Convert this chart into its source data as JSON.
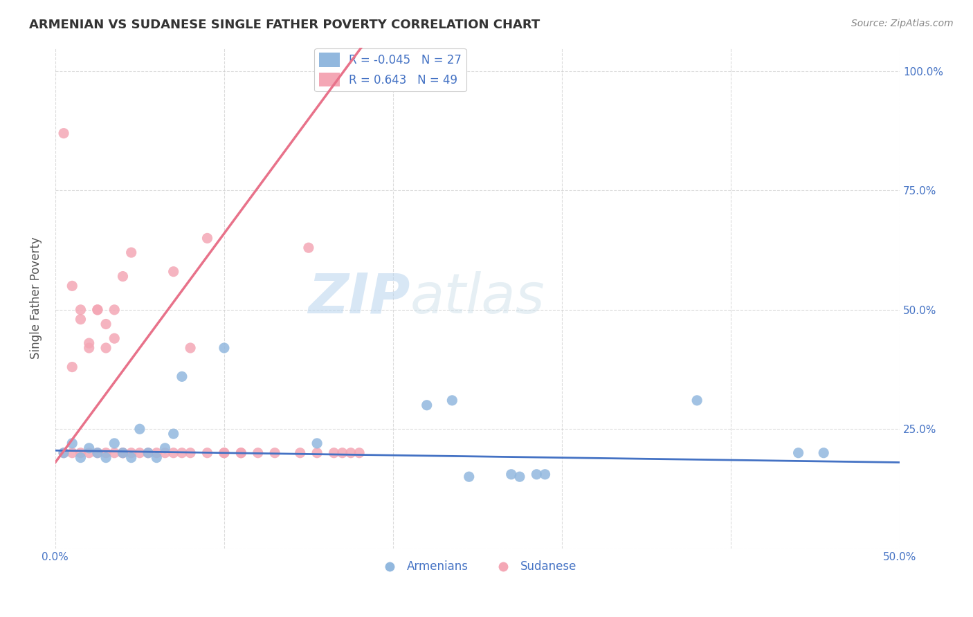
{
  "title": "ARMENIAN VS SUDANESE SINGLE FATHER POVERTY CORRELATION CHART",
  "source": "Source: ZipAtlas.com",
  "ylabel_label": "Single Father Poverty",
  "xlim": [
    0.0,
    0.5
  ],
  "ylim": [
    0.0,
    1.05
  ],
  "xticks": [
    0.0,
    0.1,
    0.2,
    0.3,
    0.4,
    0.5
  ],
  "xticklabels": [
    "0.0%",
    "",
    "",
    "",
    "",
    "50.0%"
  ],
  "yticks": [
    0.0,
    0.25,
    0.5,
    0.75,
    1.0
  ],
  "yticklabels_right": [
    "",
    "25.0%",
    "50.0%",
    "75.0%",
    "100.0%"
  ],
  "armenian_color": "#92b8de",
  "sudanese_color": "#f4a7b5",
  "armenian_line_color": "#4472c4",
  "sudanese_line_color": "#e8728a",
  "legend_r_armenian": "-0.045",
  "legend_n_armenian": "27",
  "legend_r_sudanese": " 0.643",
  "legend_n_sudanese": "49",
  "watermark_zip": "ZIP",
  "watermark_atlas": "atlas",
  "armenian_scatter_x": [
    0.005,
    0.01,
    0.015,
    0.02,
    0.025,
    0.03,
    0.035,
    0.04,
    0.045,
    0.05,
    0.055,
    0.06,
    0.065,
    0.07,
    0.075,
    0.1,
    0.155,
    0.22,
    0.235,
    0.245,
    0.275,
    0.38,
    0.44,
    0.455,
    0.27,
    0.285,
    0.29
  ],
  "armenian_scatter_y": [
    0.2,
    0.22,
    0.19,
    0.21,
    0.2,
    0.19,
    0.22,
    0.2,
    0.19,
    0.25,
    0.2,
    0.19,
    0.21,
    0.24,
    0.36,
    0.42,
    0.22,
    0.3,
    0.31,
    0.15,
    0.15,
    0.31,
    0.2,
    0.2,
    0.155,
    0.155,
    0.155
  ],
  "sudanese_scatter_x": [
    0.005,
    0.01,
    0.015,
    0.02,
    0.025,
    0.03,
    0.035,
    0.04,
    0.01,
    0.015,
    0.02,
    0.025,
    0.03,
    0.035,
    0.04,
    0.045,
    0.005,
    0.01,
    0.015,
    0.02,
    0.025,
    0.03,
    0.035,
    0.04,
    0.045,
    0.05,
    0.055,
    0.06,
    0.065,
    0.07,
    0.075,
    0.08,
    0.09,
    0.1,
    0.11,
    0.12,
    0.13,
    0.07,
    0.08,
    0.09,
    0.1,
    0.11,
    0.145,
    0.15,
    0.155,
    0.165,
    0.17,
    0.175,
    0.18
  ],
  "sudanese_scatter_y": [
    0.2,
    0.2,
    0.2,
    0.2,
    0.2,
    0.2,
    0.2,
    0.2,
    0.38,
    0.48,
    0.42,
    0.5,
    0.47,
    0.5,
    0.57,
    0.62,
    0.87,
    0.55,
    0.5,
    0.43,
    0.5,
    0.42,
    0.44,
    0.2,
    0.2,
    0.2,
    0.2,
    0.2,
    0.2,
    0.2,
    0.2,
    0.42,
    0.2,
    0.2,
    0.2,
    0.2,
    0.2,
    0.58,
    0.2,
    0.65,
    0.2,
    0.2,
    0.2,
    0.63,
    0.2,
    0.2,
    0.2,
    0.2,
    0.2
  ],
  "background_color": "#ffffff",
  "grid_color": "#cccccc",
  "title_color": "#333333",
  "axis_label_color": "#555555",
  "tick_label_color": "#4472c4",
  "legend_text_color": "#4472c4",
  "right_tick_color": "#4472c4"
}
